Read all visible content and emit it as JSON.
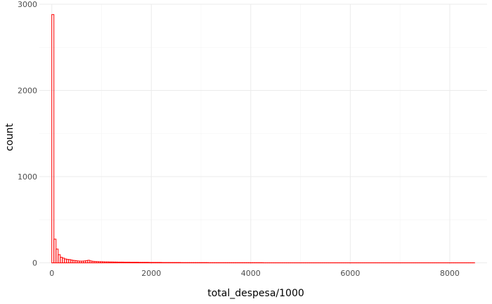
{
  "chart_data": {
    "type": "bar",
    "subtype": "histogram",
    "title": "",
    "xlabel": "total_despesa/1000",
    "ylabel": "count",
    "xlim": [
      -250,
      8750
    ],
    "ylim": [
      -20,
      3000
    ],
    "x_ticks": [
      0,
      2000,
      4000,
      6000,
      8000
    ],
    "x_tick_labels": [
      "0",
      "2000",
      "4000",
      "6000",
      "8000"
    ],
    "y_ticks": [
      0,
      1000,
      2000,
      3000
    ],
    "y_tick_labels": [
      "0",
      "1000",
      "2000",
      "3000"
    ],
    "x_minor_ticks": [
      1000,
      3000,
      5000,
      7000
    ],
    "y_minor_ticks": [
      500,
      1500,
      2500
    ],
    "grid": true,
    "bin_width": 42.5,
    "bin_start": 0,
    "bar_outline_color": "#ff0000",
    "bar_fill": "none",
    "counts": [
      2880,
      275,
      160,
      95,
      65,
      55,
      45,
      40,
      38,
      32,
      28,
      25,
      22,
      20,
      20,
      22,
      26,
      30,
      22,
      18,
      16,
      15,
      14,
      14,
      13,
      12,
      12,
      11,
      11,
      10,
      10,
      9,
      9,
      9,
      8,
      8,
      8,
      7,
      7,
      7,
      7,
      6,
      6,
      6,
      6,
      6,
      5,
      5,
      5,
      5,
      5,
      5,
      4,
      4,
      4,
      4,
      4,
      4,
      4,
      4,
      4,
      3,
      3,
      3,
      3,
      3,
      3,
      3,
      3,
      3,
      3,
      3,
      3,
      3,
      2,
      2,
      2,
      2,
      2,
      2,
      2,
      2,
      2,
      2,
      2,
      2,
      2,
      2,
      2,
      2,
      2,
      2,
      2,
      2,
      2,
      2,
      2,
      2,
      2,
      2,
      1,
      1,
      1,
      1,
      1,
      1,
      1,
      1,
      1,
      1,
      1,
      1,
      1,
      1,
      1,
      1,
      1,
      1,
      1,
      1,
      1,
      1,
      1,
      1,
      1,
      1,
      1,
      1,
      1,
      1,
      1,
      1,
      1,
      1,
      1,
      1,
      1,
      1,
      1,
      1,
      1,
      1,
      1,
      1,
      1,
      1,
      1,
      1,
      1,
      1,
      1,
      1,
      1,
      1,
      1,
      1,
      1,
      1,
      1,
      1,
      1,
      1,
      1,
      1,
      1,
      1,
      1,
      1,
      1,
      1,
      1,
      1,
      1,
      1,
      1,
      1,
      1,
      1,
      1,
      1,
      1,
      1,
      1,
      1,
      1,
      1,
      1,
      1,
      1,
      1,
      1,
      1,
      1,
      1,
      1,
      1,
      1,
      1,
      1,
      1
    ]
  }
}
